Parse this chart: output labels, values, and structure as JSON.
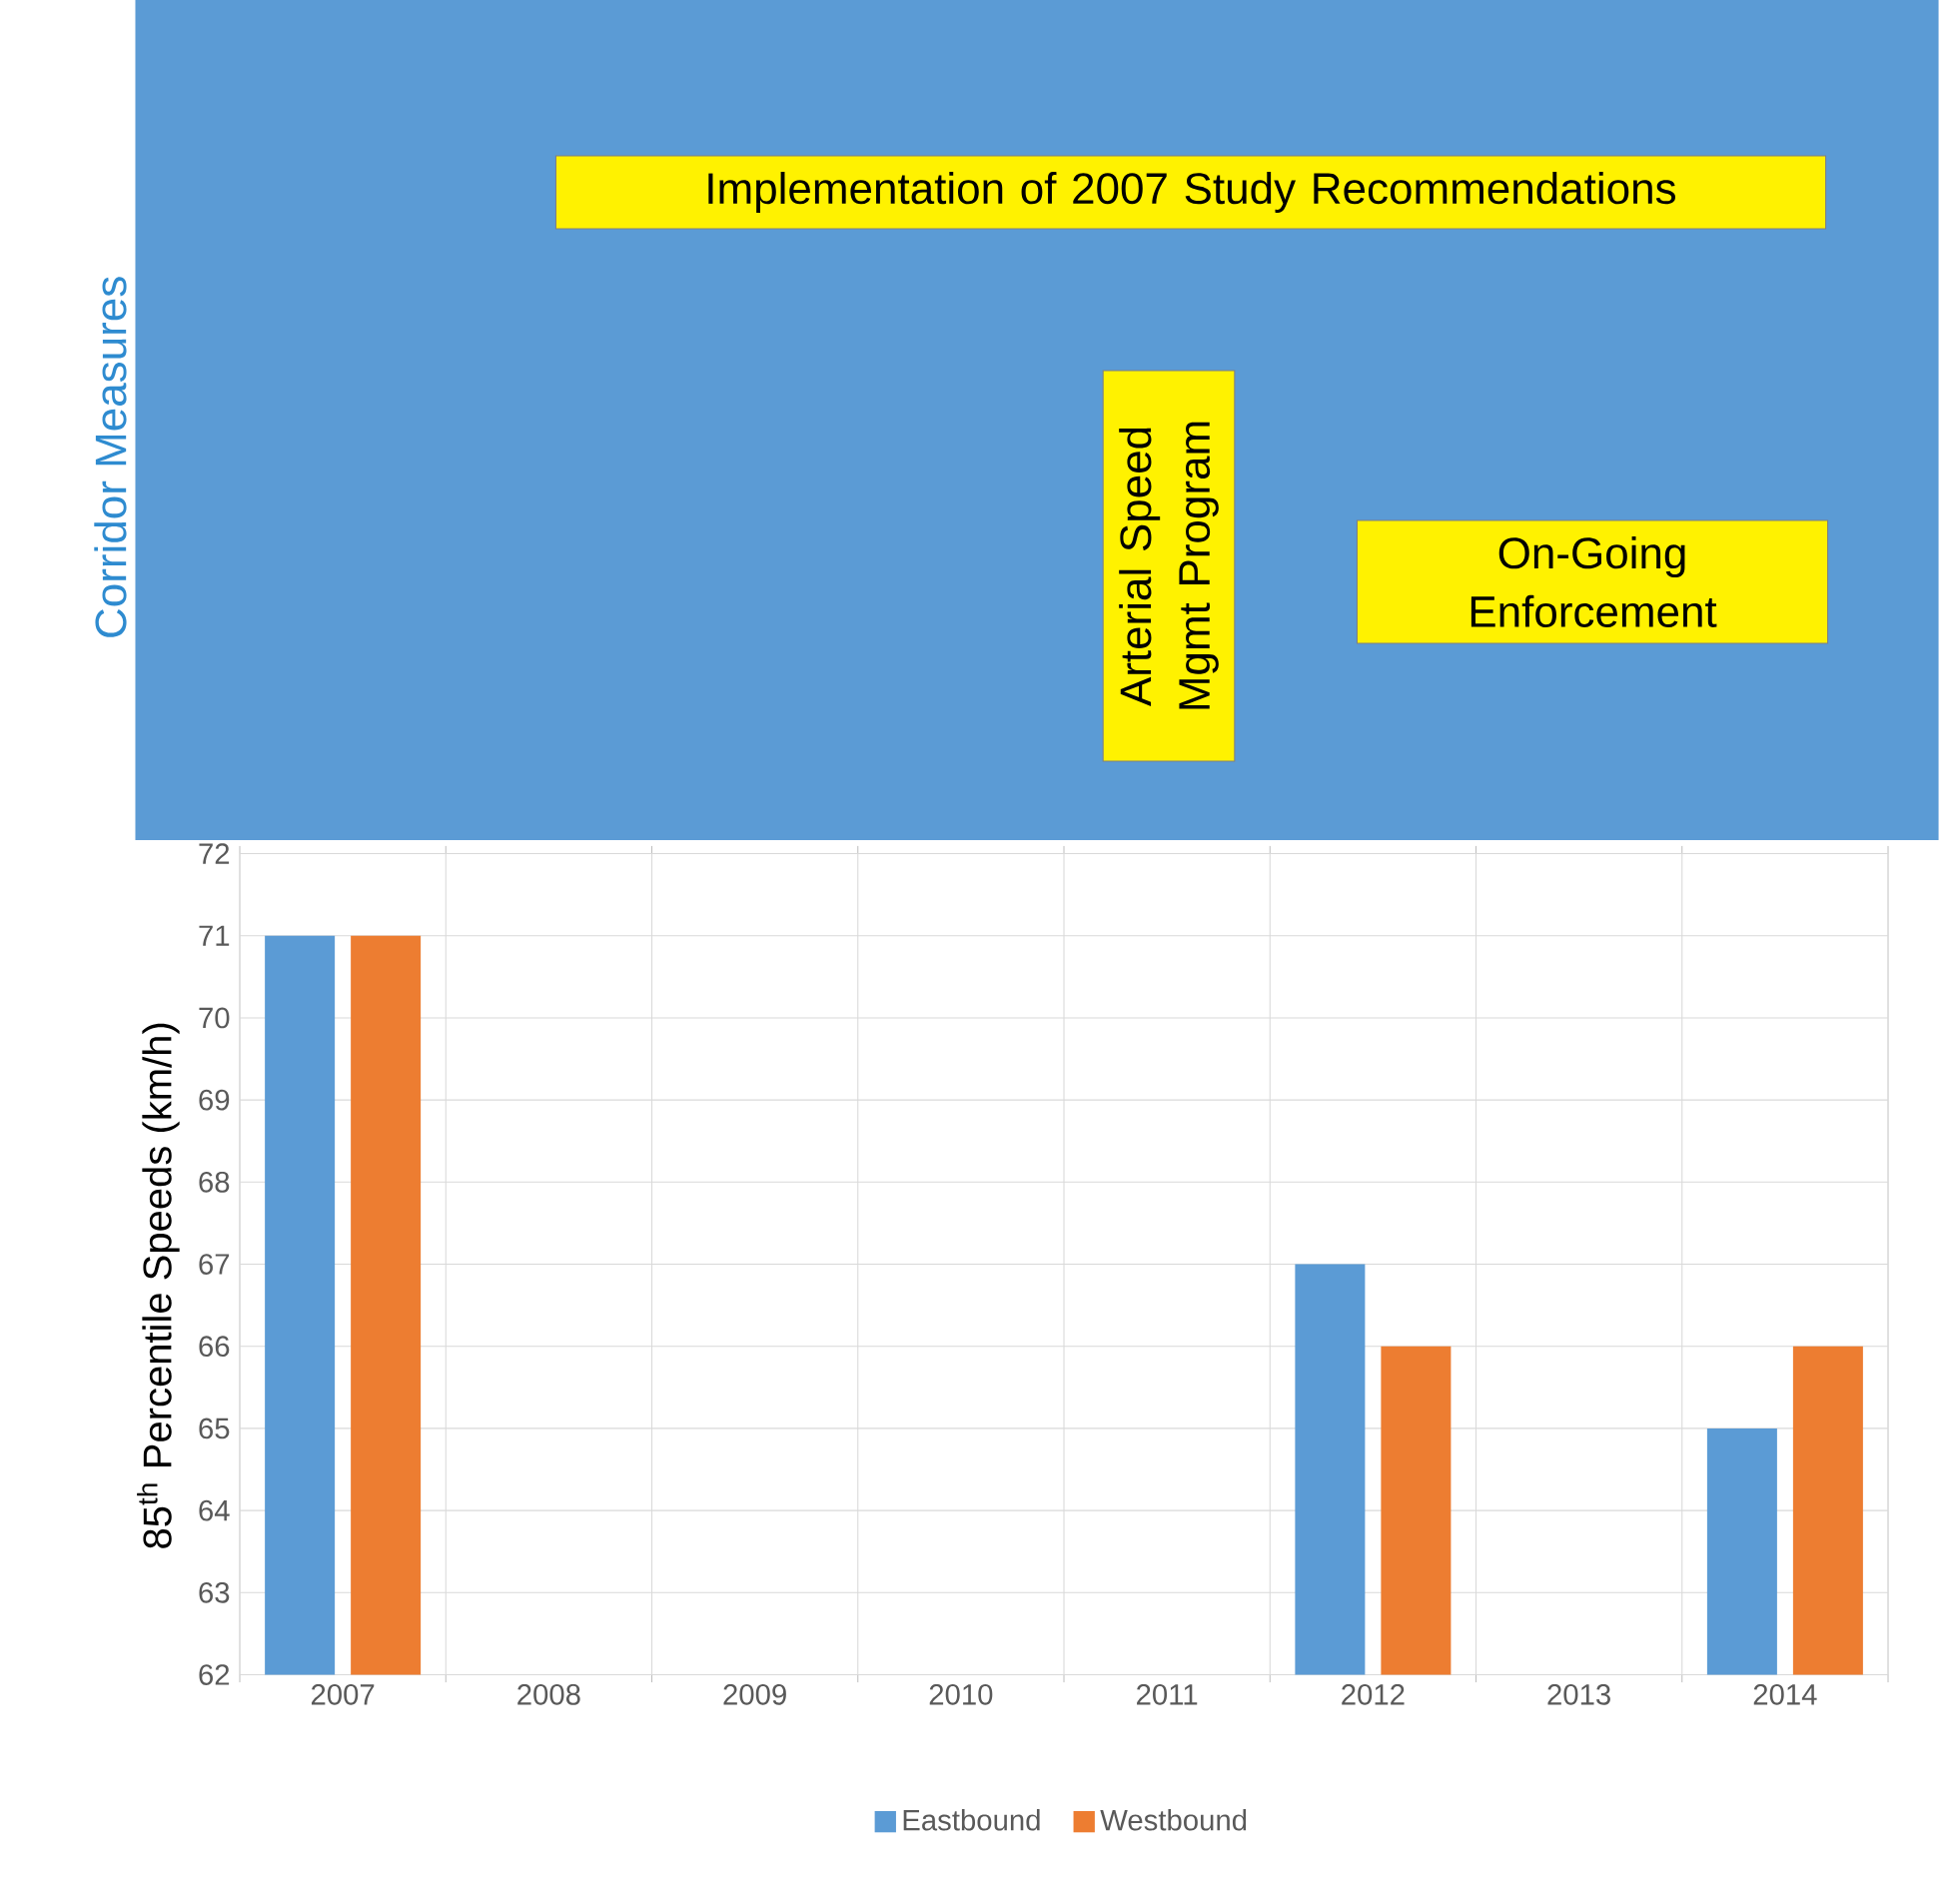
{
  "chart_data": [
    {
      "type": "other",
      "ylabel": "Corridor Measures",
      "annotations": [
        "Implementation of 2007 Study Recommendations",
        "Arterial Speed Mgmt Program",
        "On-Going Enforcement"
      ]
    },
    {
      "type": "bar",
      "ylabel": "85$^{th}$ Percentile Speeds (km/h)",
      "categories": [
        "2007",
        "2008",
        "2009",
        "2010",
        "2011",
        "2012",
        "2013",
        "2014"
      ],
      "series": [
        {
          "name": "Eastbound",
          "color": "#5b9bd5",
          "values": [
            71,
            null,
            null,
            null,
            null,
            67,
            null,
            65
          ]
        },
        {
          "name": "Westbound",
          "color": "#ed7d31",
          "values": [
            71,
            null,
            null,
            null,
            null,
            66,
            null,
            66
          ]
        }
      ],
      "ylim": [
        62,
        72
      ],
      "yticks": [
        62,
        63,
        64,
        65,
        66,
        67,
        68,
        69,
        70,
        71,
        72
      ],
      "grid": true,
      "legend": "bottom"
    }
  ]
}
